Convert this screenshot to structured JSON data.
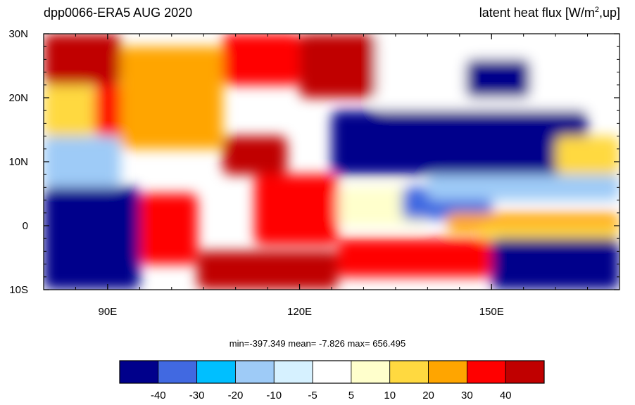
{
  "title": {
    "left": "dpp0066-ERA5  AUG 2020",
    "right_prefix": "latent heat flux [W/m",
    "right_sup": "2",
    "right_suffix": ",up]"
  },
  "stats": {
    "text": "min=-397.349  mean=  -7.826  max= 656.495"
  },
  "colors": {
    "levels": [
      "#00008b",
      "#4169e1",
      "#00bfff",
      "#9ecbf7",
      "#d6f1ff",
      "#ffffff",
      "#ffffcc",
      "#ffd940",
      "#ffa500",
      "#ff0000",
      "#c00000"
    ]
  },
  "chart_data": {
    "type": "heatmap",
    "title": "dpp0066-ERA5  AUG 2020",
    "subtitle": "latent heat flux [W/m2,up]",
    "xlim": [
      80,
      170
    ],
    "ylim": [
      -10,
      30
    ],
    "x_ticks": [
      {
        "value": 90,
        "label": "90E"
      },
      {
        "value": 120,
        "label": "120E"
      },
      {
        "value": 150,
        "label": "150E"
      }
    ],
    "y_ticks": [
      {
        "value": 30,
        "label": "30N"
      },
      {
        "value": 20,
        "label": "20N"
      },
      {
        "value": 10,
        "label": "10N"
      },
      {
        "value": 0,
        "label": "0"
      },
      {
        "value": -10,
        "label": "10S"
      }
    ],
    "colorbar": {
      "levels": [
        -40,
        -30,
        -20,
        -10,
        -5,
        5,
        10,
        20,
        30,
        40
      ],
      "labels": [
        "-40",
        "-30",
        "-20",
        "-10",
        "-5",
        "5",
        "10",
        "20",
        "30",
        "40"
      ]
    },
    "statistics": {
      "min": -397.349,
      "mean": -7.826,
      "max": 656.495
    },
    "regions": [
      {
        "lon": [
          80,
          95
        ],
        "lat": [
          -10,
          6
        ],
        "value": -60
      },
      {
        "lon": [
          80,
          92
        ],
        "lat": [
          6,
          14
        ],
        "value": -20
      },
      {
        "lon": [
          80,
          88
        ],
        "lat": [
          14,
          22
        ],
        "value": 15
      },
      {
        "lon": [
          88,
          95
        ],
        "lat": [
          14,
          22
        ],
        "value": 35
      },
      {
        "lon": [
          80,
          92
        ],
        "lat": [
          22,
          30
        ],
        "value": 45
      },
      {
        "lon": [
          92,
          108
        ],
        "lat": [
          12,
          28
        ],
        "value": 22
      },
      {
        "lon": [
          108,
          120
        ],
        "lat": [
          22,
          30
        ],
        "value": 30
      },
      {
        "lon": [
          120,
          132
        ],
        "lat": [
          20,
          30
        ],
        "value": 50
      },
      {
        "lon": [
          132,
          170
        ],
        "lat": [
          18,
          30
        ],
        "value": -5
      },
      {
        "lon": [
          146,
          156
        ],
        "lat": [
          20,
          26
        ],
        "value": -55
      },
      {
        "lon": [
          125,
          165
        ],
        "lat": [
          8,
          18
        ],
        "value": -55
      },
      {
        "lon": [
          160,
          170
        ],
        "lat": [
          8,
          14
        ],
        "value": 12
      },
      {
        "lon": [
          108,
          118
        ],
        "lat": [
          8,
          14
        ],
        "value": 40
      },
      {
        "lon": [
          113,
          126
        ],
        "lat": [
          -3,
          8
        ],
        "value": 35
      },
      {
        "lon": [
          126,
          140
        ],
        "lat": [
          0,
          6
        ],
        "value": 8
      },
      {
        "lon": [
          136,
          150
        ],
        "lat": [
          1,
          6
        ],
        "value": -35
      },
      {
        "lon": [
          140,
          170
        ],
        "lat": [
          4,
          8
        ],
        "value": -15
      },
      {
        "lon": [
          143,
          170
        ],
        "lat": [
          -1,
          2
        ],
        "value": 25
      },
      {
        "lon": [
          148,
          170
        ],
        "lat": [
          -2,
          0
        ],
        "value": 12
      },
      {
        "lon": [
          95,
          104
        ],
        "lat": [
          -6,
          5
        ],
        "value": 35
      },
      {
        "lon": [
          104,
          126
        ],
        "lat": [
          -10,
          -4
        ],
        "value": 45
      },
      {
        "lon": [
          126,
          150
        ],
        "lat": [
          -8,
          -2
        ],
        "value": 30
      },
      {
        "lon": [
          150,
          170
        ],
        "lat": [
          -10,
          -2
        ],
        "value": -55
      }
    ]
  }
}
